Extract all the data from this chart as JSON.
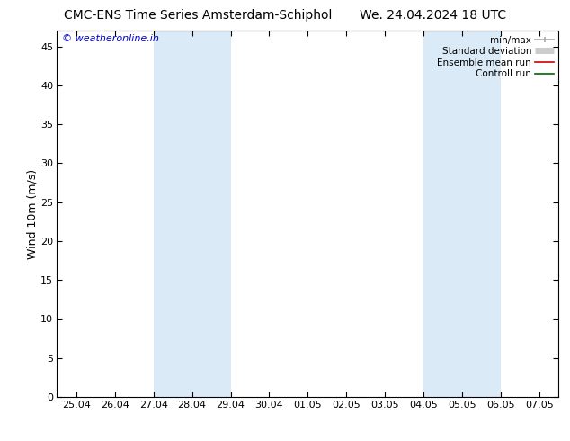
{
  "title": "CMC-ENS Time Series Amsterdam-Schiphol       We. 24.04.2024 18 UTC",
  "ylabel": "Wind 10m (m/s)",
  "ylim": [
    0,
    47
  ],
  "yticks": [
    0,
    5,
    10,
    15,
    20,
    25,
    30,
    35,
    40,
    45
  ],
  "xtick_labels": [
    "25.04",
    "26.04",
    "27.04",
    "28.04",
    "29.04",
    "30.04",
    "01.05",
    "02.05",
    "03.05",
    "04.05",
    "05.05",
    "06.05",
    "07.05"
  ],
  "shaded_color": "#daeaf7",
  "background_color": "#ffffff",
  "watermark_text": "© weatheronline.in",
  "watermark_color": "#0000cc",
  "legend_entries": [
    {
      "label": "min/max"
    },
    {
      "label": "Standard deviation"
    },
    {
      "label": "Ensemble mean run"
    },
    {
      "label": "Controll run"
    }
  ],
  "title_fontsize": 10,
  "tick_fontsize": 8,
  "legend_fontsize": 7.5,
  "ylabel_fontsize": 9
}
